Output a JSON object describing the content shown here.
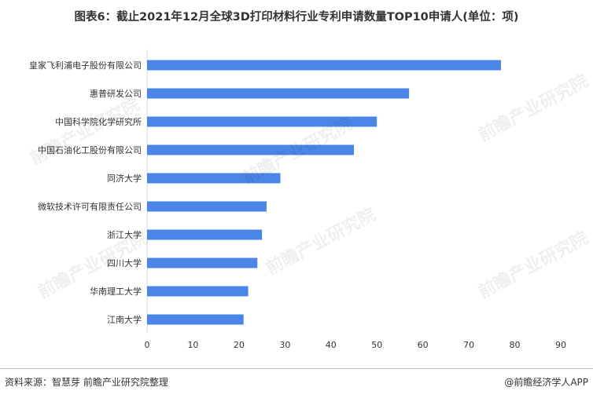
{
  "title": "图表6：截止2021年12月全球3D打印材料行业专利申请数量TOP10申请人(单位：项)",
  "source": "资料来源：智慧芽 前瞻产业研究院整理",
  "credit": "@前瞻经济学人APP",
  "watermark": "前瞻产业研究院",
  "colors": {
    "bar": "#4a86e8",
    "axis": "#d9d9d9",
    "text": "#333333"
  },
  "chart_data": {
    "type": "bar",
    "orientation": "horizontal",
    "title": "图表6：截止2021年12月全球3D打印材料行业专利申请数量TOP10申请人(单位：项)",
    "categories": [
      "皇家飞利浦电子股份有限公司",
      "惠普研发公司",
      "中国科学院化学研究所",
      "中国石油化工股份有限公司",
      "同济大学",
      "微软技术许可有限责任公司",
      "浙江大学",
      "四川大学",
      "华南理工大学",
      "江南大学"
    ],
    "values": [
      77,
      57,
      50,
      45,
      29,
      26,
      25,
      24,
      22,
      21
    ],
    "xlim": [
      0,
      90
    ],
    "xticks": [
      0,
      10,
      20,
      30,
      40,
      50,
      60,
      70,
      80,
      90
    ],
    "grid": false,
    "legend": "none"
  }
}
